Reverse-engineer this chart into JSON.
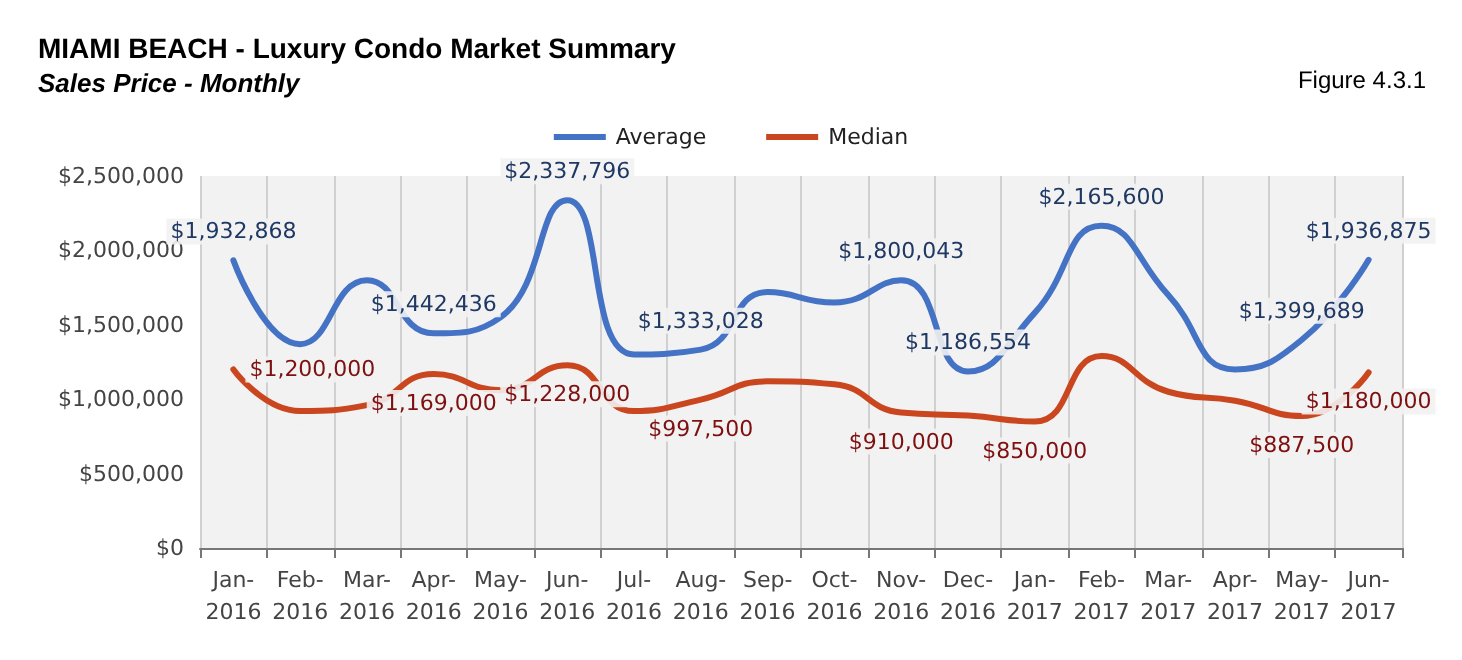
{
  "chart_data": {
    "type": "line",
    "title": "MIAMI BEACH - Luxury Condo Market Summary",
    "subtitle": "Sales Price - Monthly",
    "annotations": [
      "Figure 4.3.1"
    ],
    "categories": [
      "Jan-\n2016",
      "Feb-\n2016",
      "Mar-\n2016",
      "Apr-\n2016",
      "May-\n2016",
      "Jun-\n2016",
      "Jul-\n2016",
      "Aug-\n2016",
      "Sep-\n2016",
      "Oct-\n2016",
      "Nov-\n2016",
      "Dec-\n2016",
      "Jan-\n2017",
      "Feb-\n2017",
      "Mar-\n2017",
      "Apr-\n2017",
      "May-\n2017",
      "Jun-\n2017"
    ],
    "series": [
      {
        "name": "Average",
        "color": "#4472c4",
        "values": [
          1932868,
          1370000,
          1800000,
          1442436,
          1550000,
          2337796,
          1300000,
          1333028,
          1720000,
          1650000,
          1800043,
          1186554,
          1580000,
          2165600,
          1700000,
          1200000,
          1399689,
          1936875
        ],
        "value_labels": [
          "$1,932,868",
          null,
          null,
          "$1,442,436",
          null,
          "$2,337,796",
          null,
          "$1,333,028",
          null,
          null,
          "$1,800,043",
          "$1,186,554",
          null,
          "$2,165,600",
          null,
          null,
          "$1,399,689",
          "$1,936,875"
        ]
      },
      {
        "name": "Median",
        "color": "#c9461f",
        "values": [
          1200000,
          920000,
          960000,
          1169000,
          1060000,
          1228000,
          920000,
          997500,
          1120000,
          1100000,
          910000,
          890000,
          850000,
          1290000,
          1050000,
          990000,
          887500,
          1180000
        ],
        "value_labels": [
          "$1,200,000",
          null,
          null,
          "$1,169,000",
          null,
          "$1,228,000",
          null,
          "$997,500",
          null,
          null,
          "$910,000",
          null,
          "$850,000",
          null,
          null,
          null,
          "$887,500",
          "$1,180,000"
        ]
      }
    ],
    "ylim": [
      0,
      2500000
    ],
    "yticks": [
      {
        "value": 0,
        "label": "$0"
      },
      {
        "value": 500000,
        "label": "$500,000"
      },
      {
        "value": 1000000,
        "label": "$1,000,000"
      },
      {
        "value": 1500000,
        "label": "$1,500,000"
      },
      {
        "value": 2000000,
        "label": "$2,000,000"
      },
      {
        "value": 2500000,
        "label": "$2,500,000"
      }
    ],
    "grid": "x",
    "legend": "top",
    "marker": "none",
    "line_style": "solid"
  }
}
